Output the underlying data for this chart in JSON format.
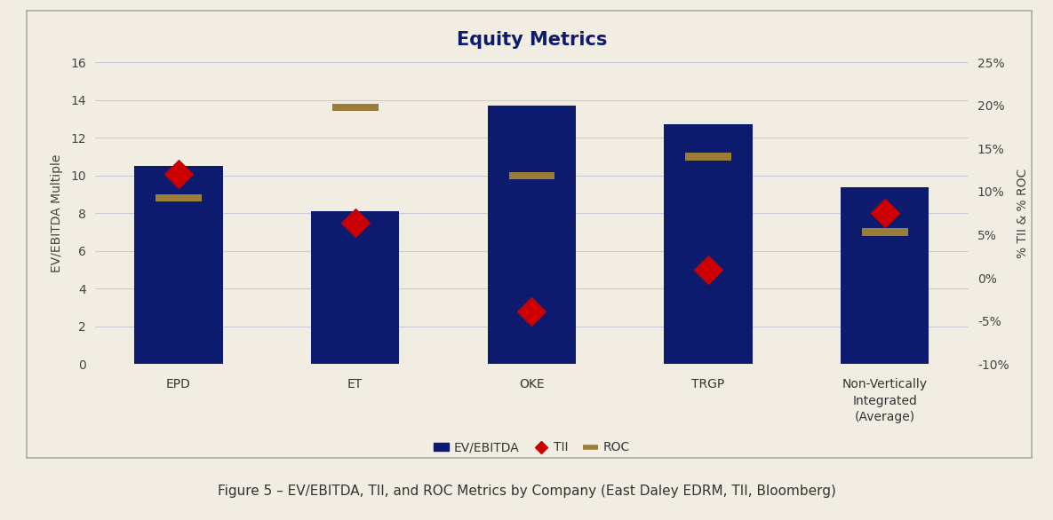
{
  "categories": [
    "EPD",
    "ET",
    "OKE",
    "TRGP",
    "Non-Vertically\nIntegrated\n(Average)"
  ],
  "ev_ebitda": [
    10.5,
    8.1,
    13.7,
    12.7,
    9.4
  ],
  "tii": [
    10.1,
    7.5,
    2.8,
    5.0,
    8.0
  ],
  "roc": [
    8.8,
    13.6,
    10.0,
    11.0,
    7.0
  ],
  "bar_color": "#0d1b6e",
  "tii_color": "#cc0000",
  "roc_color": "#9B7D3A",
  "background_color": "#f2ede2",
  "grid_color": "#c8ccd8",
  "title": "Equity Metrics",
  "ylabel_left": "EV/EBITDA Multiple",
  "ylabel_right": "% TII & % ROC",
  "ylim_left": [
    0,
    16
  ],
  "ylim_right": [
    -0.1,
    0.25
  ],
  "yticks_left": [
    0,
    2,
    4,
    6,
    8,
    10,
    12,
    14,
    16
  ],
  "yticks_right": [
    -0.1,
    -0.05,
    0.0,
    0.05,
    0.1,
    0.15,
    0.2,
    0.25
  ],
  "ytick_labels_right": [
    "-10%",
    "-5%",
    "0%",
    "5%",
    "10%",
    "15%",
    "20%",
    "25%"
  ],
  "caption": "Figure 5 – EV/EBITDA, TII, and ROC Metrics by Company (East Daley EDRM, TII, Bloomberg)",
  "title_fontsize": 15,
  "axis_label_fontsize": 10,
  "tick_fontsize": 10,
  "legend_fontsize": 10,
  "caption_fontsize": 11
}
